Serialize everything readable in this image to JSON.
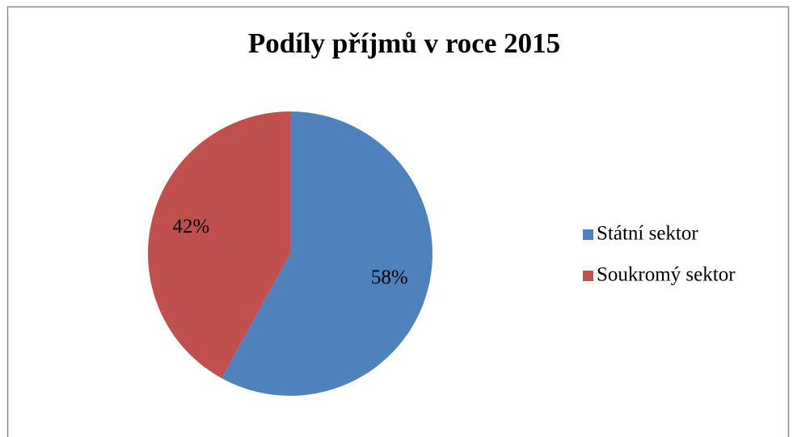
{
  "chart_data": {
    "type": "pie",
    "title": "Podíly příjmů v roce 2015",
    "categories": [
      "Státní sektor",
      "Soukromý sektor"
    ],
    "values": [
      58,
      42
    ],
    "value_labels": [
      "58%",
      "42%"
    ],
    "colors": [
      "#4f81bd",
      "#c0504d"
    ],
    "legend": "right"
  }
}
